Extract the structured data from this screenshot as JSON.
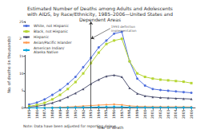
{
  "chart_data": {
    "type": "line",
    "title": "Estimated Number of Deaths among Adults and Adolescents\nwith AIDS, by Race/Ethnicity, 1985–2006—United States and\nDependent Areas",
    "x_label": "Year of death",
    "y_label": "No. of deaths (in thousands)",
    "x": [
      1985,
      1986,
      1987,
      1988,
      1989,
      1990,
      1991,
      1992,
      1993,
      1994,
      1995,
      1996,
      1997,
      1998,
      1999,
      2000,
      2001,
      2002,
      2003,
      2004,
      2005,
      2006
    ],
    "series": [
      {
        "name": "White, not Hispanic",
        "marker": "circle",
        "values": [
          1.0,
          1.6,
          2.5,
          3.8,
          5.2,
          7.0,
          9.0,
          11.8,
          14.5,
          17.5,
          19.5,
          21.5,
          22.0,
          13.5,
          8.5,
          6.5,
          5.5,
          5.2,
          5.0,
          4.8,
          4.6,
          4.4
        ]
      },
      {
        "name": "Black, not Hispanic",
        "marker": "square",
        "values": [
          0.5,
          0.9,
          1.5,
          2.5,
          3.8,
          5.5,
          7.5,
          10.0,
          13.0,
          16.0,
          18.5,
          19.5,
          20.0,
          13.5,
          10.0,
          9.0,
          8.5,
          8.2,
          8.0,
          7.8,
          7.6,
          7.2
        ]
      },
      {
        "name": "Hispanic",
        "marker": "triangle",
        "values": [
          0.3,
          0.5,
          0.9,
          1.5,
          2.2,
          3.2,
          4.3,
          5.5,
          7.0,
          8.2,
          9.2,
          9.5,
          9.0,
          5.8,
          4.2,
          3.5,
          3.2,
          3.0,
          2.9,
          2.8,
          2.7,
          2.6
        ]
      },
      {
        "name": "Asian/Pacific Islander",
        "marker": "diamond",
        "values": [
          0.04,
          0.06,
          0.1,
          0.15,
          0.22,
          0.32,
          0.45,
          0.58,
          0.72,
          0.85,
          0.95,
          1.05,
          0.92,
          0.62,
          0.48,
          0.42,
          0.4,
          0.38,
          0.37,
          0.36,
          0.35,
          0.33
        ]
      },
      {
        "name": "American Indian/\nAlaska Native",
        "marker": "circle",
        "values": [
          0.02,
          0.03,
          0.04,
          0.06,
          0.09,
          0.11,
          0.14,
          0.18,
          0.22,
          0.28,
          0.32,
          0.36,
          0.32,
          0.22,
          0.18,
          0.16,
          0.15,
          0.14,
          0.14,
          0.13,
          0.13,
          0.12
        ]
      }
    ],
    "xlim": [
      1984.5,
      2006.5
    ],
    "xticks": [
      1985,
      1986,
      1987,
      1988,
      1989,
      1990,
      1991,
      1992,
      1993,
      1994,
      1995,
      1996,
      1997,
      1998,
      1999,
      2000,
      2001,
      2002,
      2003,
      2004,
      2005,
      2006
    ],
    "ylim": [
      0,
      25
    ],
    "yticks": [
      0,
      5,
      10,
      15,
      20,
      25
    ],
    "vline": 1993,
    "annotations": [
      {
        "text": "1993 definition\nimplementation",
        "x": 1993,
        "y": 20,
        "text_x": 1995.5,
        "text_y": 23
      }
    ],
    "note": "Note: Data have been adjusted for reporting delays.",
    "legend": "upper left",
    "grid": false
  }
}
